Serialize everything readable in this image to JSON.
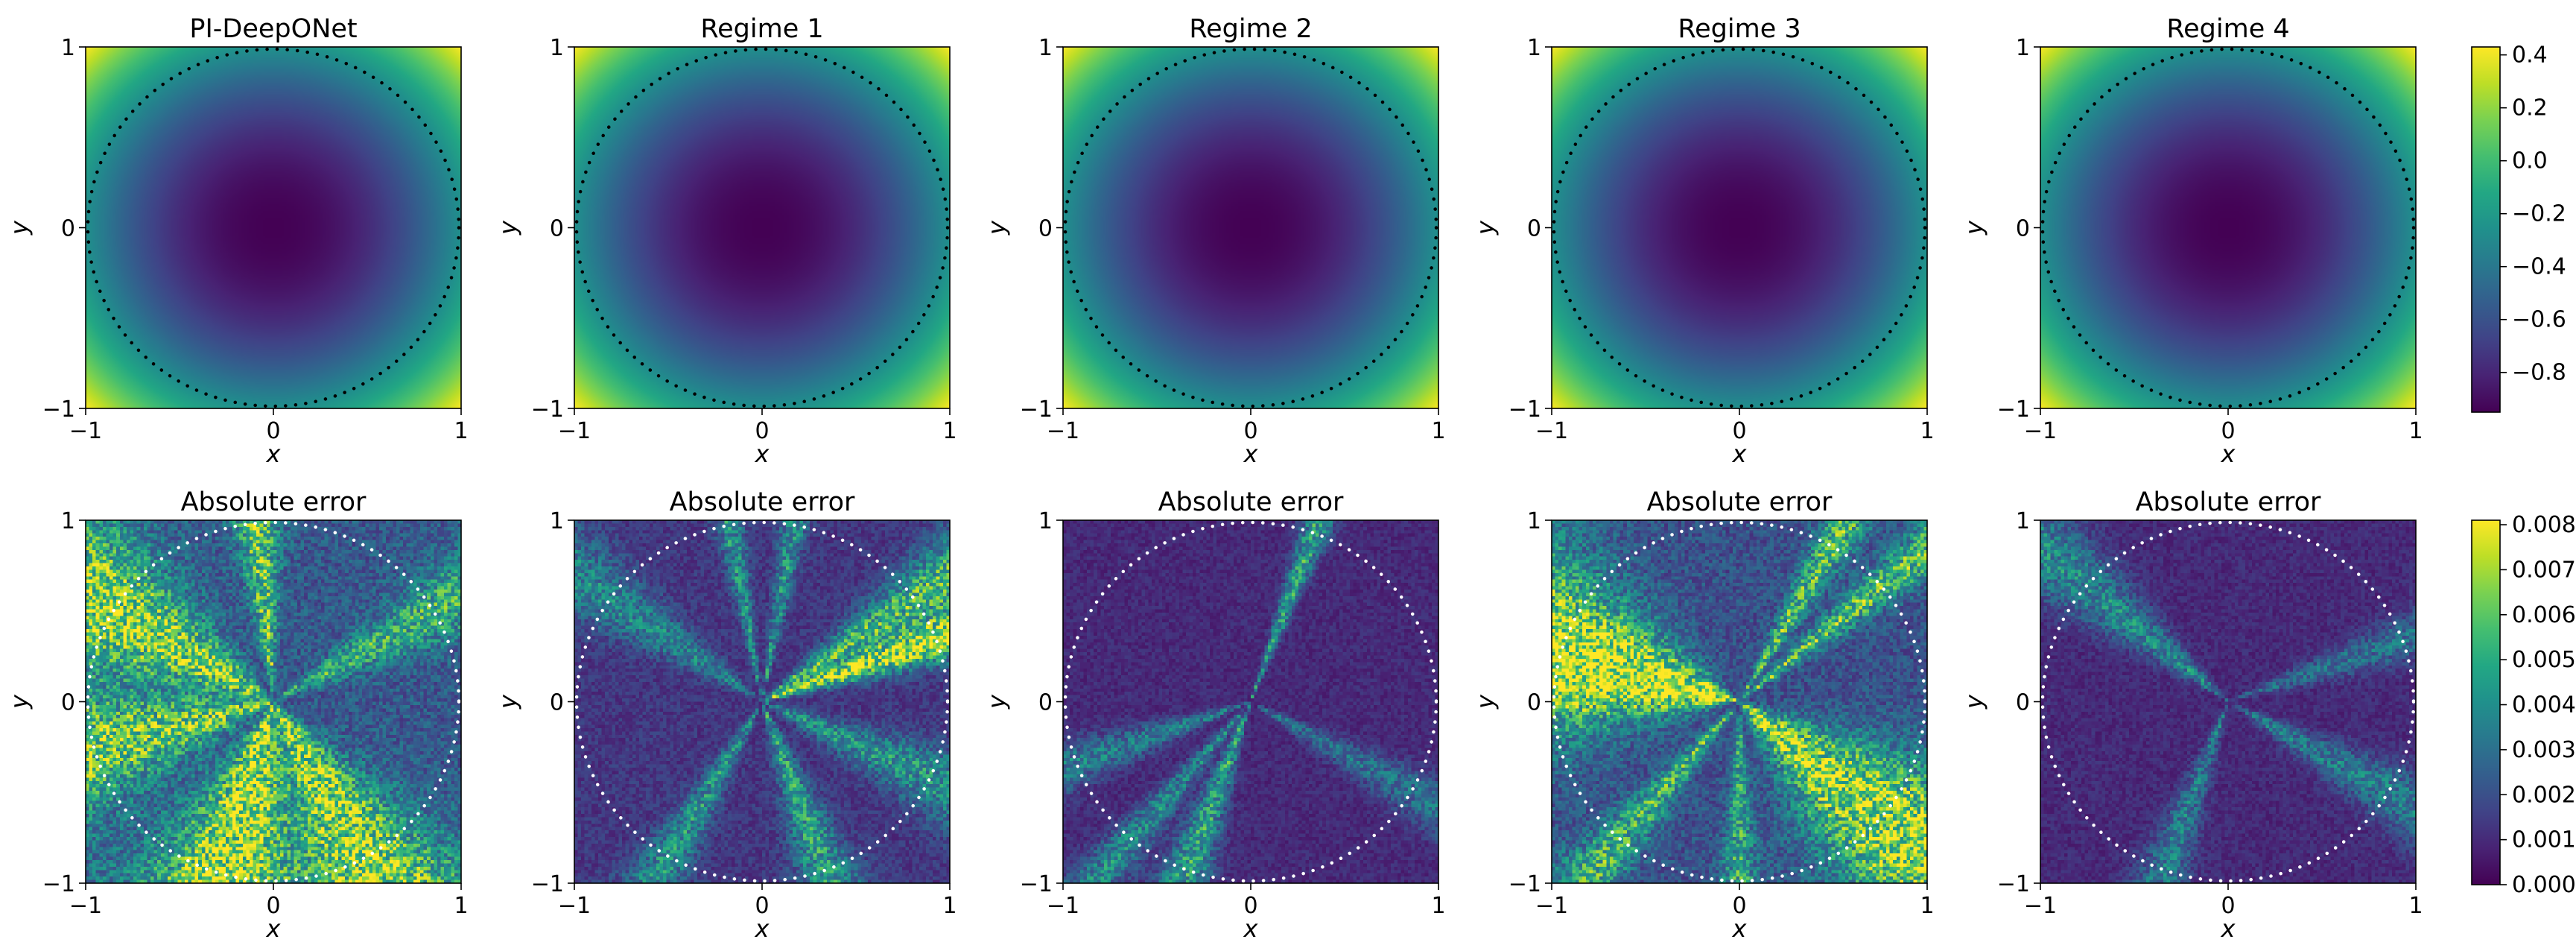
{
  "figure": {
    "rows": [
      {
        "name": "solution",
        "colormap": "viridis",
        "vmin": -0.95,
        "vmax": 0.43,
        "circle_style": "black dotted",
        "colorbar_ticks": [
          "0.4",
          "0.2",
          "0.0",
          "−0.2",
          "−0.4",
          "−0.6",
          "−0.8"
        ],
        "colorbar_tick_values": [
          0.4,
          0.2,
          0.0,
          -0.2,
          -0.4,
          -0.6,
          -0.8
        ]
      },
      {
        "name": "error",
        "colormap": "viridis",
        "vmin": 0.0,
        "vmax": 0.0081,
        "circle_style": "white dotted",
        "colorbar_ticks": [
          "0.008",
          "0.007",
          "0.006",
          "0.005",
          "0.004",
          "0.003",
          "0.002",
          "0.001",
          "0.000"
        ],
        "colorbar_tick_values": [
          0.008,
          0.007,
          0.006,
          0.005,
          0.004,
          0.003,
          0.002,
          0.001,
          0.0
        ]
      }
    ],
    "panels_top_titles": [
      "PI-DeepONet",
      "Regime 1",
      "Regime 2",
      "Regime 3",
      "Regime 4"
    ],
    "panels_bottom_titles": [
      "Absolute error",
      "Absolute error",
      "Absolute error",
      "Absolute error",
      "Absolute error"
    ],
    "xlabel": "x",
    "ylabel": "y",
    "x_ticks": [
      "−1",
      "0",
      "1"
    ],
    "y_ticks": [
      "1",
      "0",
      "−1"
    ]
  },
  "chart_data": [
    {
      "type": "heatmap",
      "title": "PI-DeepONet",
      "xlabel": "x",
      "ylabel": "y",
      "xlim": [
        -1,
        1
      ],
      "ylim": [
        -1,
        1
      ],
      "value_range": [
        -0.95,
        0.43
      ],
      "pattern": "radial: minimum at center (about -0.95), increasing outward to about 0.43 in corners",
      "overlay": "unit circle, dotted black"
    },
    {
      "type": "heatmap",
      "title": "Regime 1",
      "xlabel": "x",
      "ylabel": "y",
      "xlim": [
        -1,
        1
      ],
      "ylim": [
        -1,
        1
      ],
      "value_range": [
        -0.95,
        0.43
      ],
      "overlay": "unit circle, dotted black"
    },
    {
      "type": "heatmap",
      "title": "Regime 2",
      "xlabel": "x",
      "ylabel": "y",
      "xlim": [
        -1,
        1
      ],
      "ylim": [
        -1,
        1
      ],
      "value_range": [
        -0.95,
        0.43
      ],
      "overlay": "unit circle, dotted black"
    },
    {
      "type": "heatmap",
      "title": "Regime 3",
      "xlabel": "x",
      "ylabel": "y",
      "xlim": [
        -1,
        1
      ],
      "ylim": [
        -1,
        1
      ],
      "value_range": [
        -0.95,
        0.43
      ],
      "overlay": "unit circle, dotted black"
    },
    {
      "type": "heatmap",
      "title": "Regime 4",
      "xlabel": "x",
      "ylabel": "y",
      "xlim": [
        -1,
        1
      ],
      "ylim": [
        -1,
        1
      ],
      "value_range": [
        -0.95,
        0.43
      ],
      "overlay": "unit circle, dotted black"
    },
    {
      "type": "heatmap",
      "title": "Absolute error",
      "xlabel": "x",
      "ylabel": "y",
      "xlim": [
        -1,
        1
      ],
      "ylim": [
        -1,
        1
      ],
      "value_range": [
        0.0,
        0.0081
      ],
      "overlay": "unit circle, dotted white",
      "rays": [
        {
          "angle_deg": 150,
          "strength": 0.55,
          "width_deg": 28
        },
        {
          "angle_deg": 195,
          "strength": 0.5,
          "width_deg": 24
        },
        {
          "angle_deg": 255,
          "strength": 0.6,
          "width_deg": 30
        },
        {
          "angle_deg": 300,
          "strength": 0.55,
          "width_deg": 26
        },
        {
          "angle_deg": 95,
          "strength": 0.45,
          "width_deg": 10
        },
        {
          "angle_deg": 30,
          "strength": 0.35,
          "width_deg": 14
        }
      ],
      "base_level": 0.28
    },
    {
      "type": "heatmap",
      "title": "Absolute error",
      "xlabel": "x",
      "ylabel": "y",
      "xlim": [
        -1,
        1
      ],
      "ylim": [
        -1,
        1
      ],
      "value_range": [
        0.0,
        0.0081
      ],
      "overlay": "unit circle, dotted white",
      "rays": [
        {
          "angle_deg": 20,
          "strength": 0.7,
          "width_deg": 10
        },
        {
          "angle_deg": 35,
          "strength": 0.5,
          "width_deg": 12
        },
        {
          "angle_deg": 80,
          "strength": 0.35,
          "width_deg": 6
        },
        {
          "angle_deg": 100,
          "strength": 0.35,
          "width_deg": 6
        },
        {
          "angle_deg": 145,
          "strength": 0.3,
          "width_deg": 14
        },
        {
          "angle_deg": 240,
          "strength": 0.35,
          "width_deg": 10
        },
        {
          "angle_deg": 290,
          "strength": 0.4,
          "width_deg": 12
        },
        {
          "angle_deg": 335,
          "strength": 0.35,
          "width_deg": 14
        }
      ],
      "base_level": 0.16
    },
    {
      "type": "heatmap",
      "title": "Absolute error",
      "xlabel": "x",
      "ylabel": "y",
      "xlim": [
        -1,
        1
      ],
      "ylim": [
        -1,
        1
      ],
      "value_range": [
        0.0,
        0.0081
      ],
      "overlay": "unit circle, dotted white",
      "rays": [
        {
          "angle_deg": 70,
          "strength": 0.45,
          "width_deg": 6
        },
        {
          "angle_deg": 250,
          "strength": 0.45,
          "width_deg": 10
        },
        {
          "angle_deg": 230,
          "strength": 0.35,
          "width_deg": 8
        },
        {
          "angle_deg": 200,
          "strength": 0.3,
          "width_deg": 10
        },
        {
          "angle_deg": 330,
          "strength": 0.25,
          "width_deg": 10
        }
      ],
      "base_level": 0.12
    },
    {
      "type": "heatmap",
      "title": "Absolute error",
      "xlabel": "x",
      "ylabel": "y",
      "xlim": [
        -1,
        1
      ],
      "ylim": [
        -1,
        1
      ],
      "value_range": [
        0.0,
        0.0081
      ],
      "overlay": "unit circle, dotted white",
      "rays": [
        {
          "angle_deg": 165,
          "strength": 0.75,
          "width_deg": 34
        },
        {
          "angle_deg": 320,
          "strength": 0.6,
          "width_deg": 30
        },
        {
          "angle_deg": 60,
          "strength": 0.45,
          "width_deg": 8
        },
        {
          "angle_deg": 40,
          "strength": 0.45,
          "width_deg": 8
        },
        {
          "angle_deg": 230,
          "strength": 0.4,
          "width_deg": 10
        },
        {
          "angle_deg": 270,
          "strength": 0.35,
          "width_deg": 8
        }
      ],
      "base_level": 0.25
    },
    {
      "type": "heatmap",
      "title": "Absolute error",
      "xlabel": "x",
      "ylabel": "y",
      "xlim": [
        -1,
        1
      ],
      "ylim": [
        -1,
        1
      ],
      "value_range": [
        0.0,
        0.0081
      ],
      "overlay": "unit circle, dotted white",
      "rays": [
        {
          "angle_deg": 140,
          "strength": 0.35,
          "width_deg": 14
        },
        {
          "angle_deg": 250,
          "strength": 0.3,
          "width_deg": 10
        },
        {
          "angle_deg": 330,
          "strength": 0.3,
          "width_deg": 12
        },
        {
          "angle_deg": 20,
          "strength": 0.25,
          "width_deg": 10
        }
      ],
      "base_level": 0.12
    }
  ]
}
